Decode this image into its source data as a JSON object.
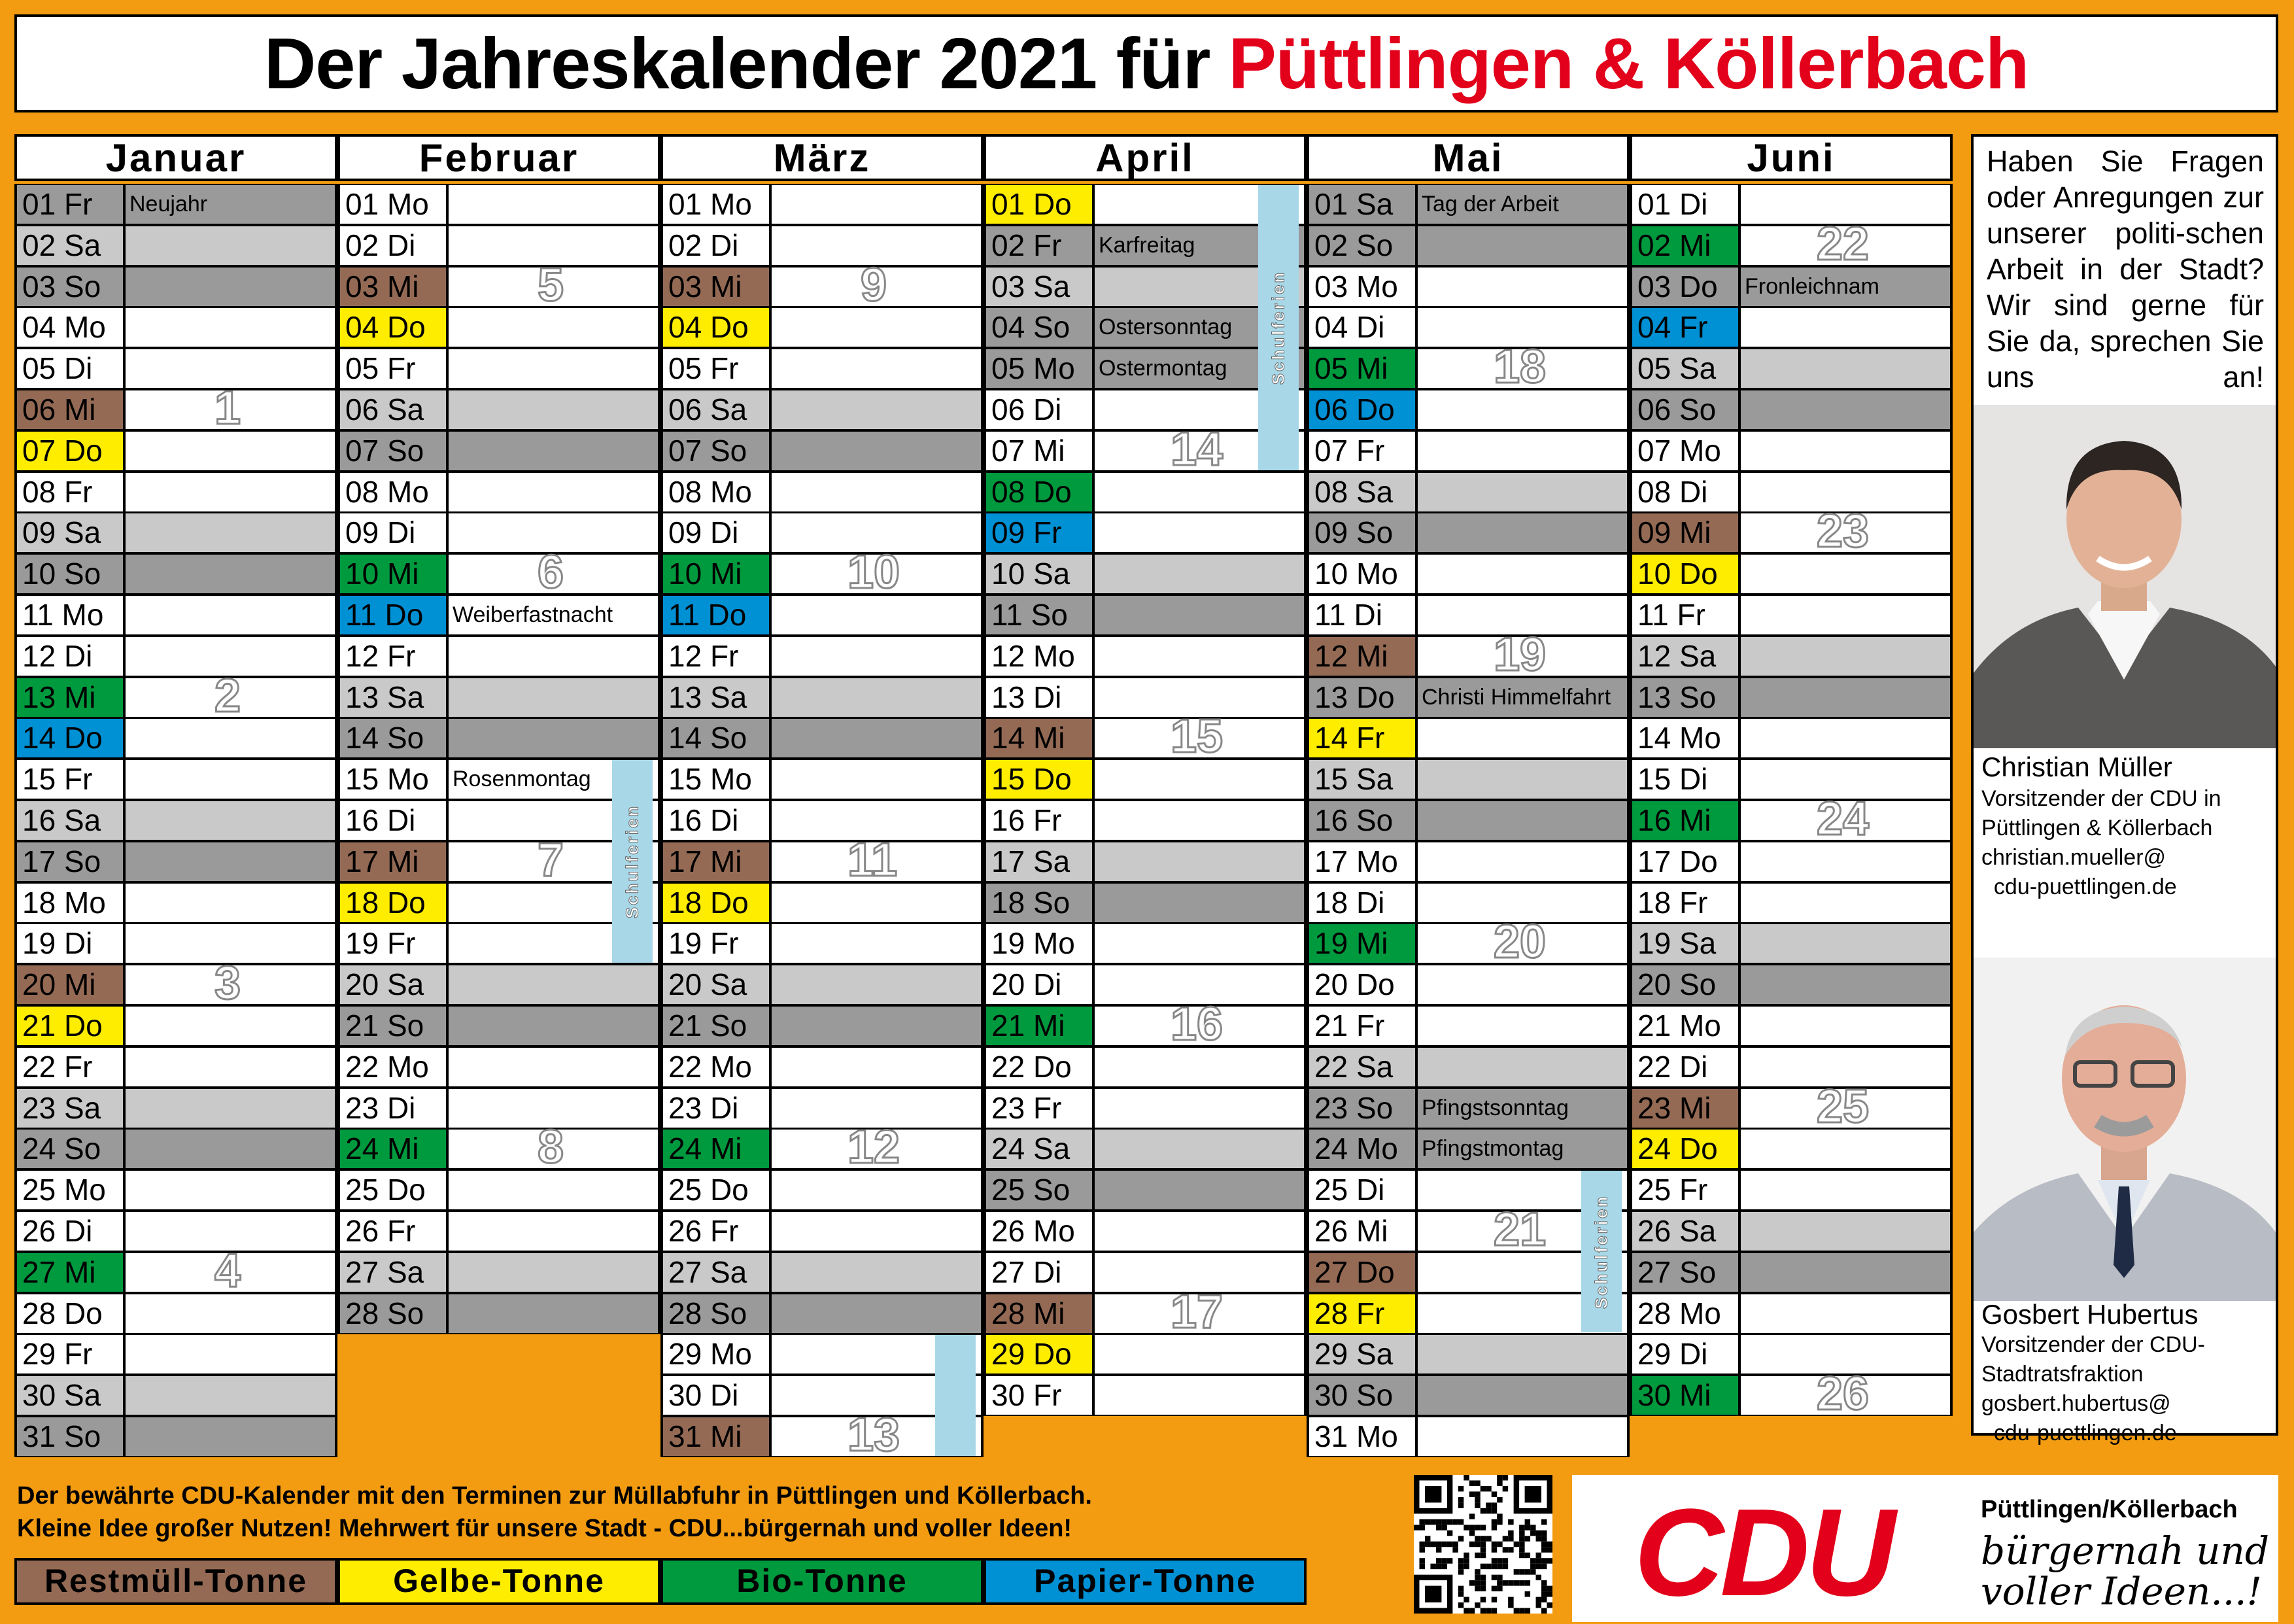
{
  "title": {
    "main": "Der Jahreskalender 2021 für",
    "accent": "Püttlingen & Köllerbach"
  },
  "colors": {
    "restmuell": "#946A55",
    "gelbe": "#FFED00",
    "bio": "#009A3E",
    "papier": "#0090D4",
    "saturday": "#C9C9C9",
    "sunday": "#9A9A9A",
    "holiday": "#9A9A9A",
    "ferien": "#A8D8E8",
    "accent_red": "#E2001A"
  },
  "months": [
    {
      "name": "Januar",
      "start": 5,
      "restmuell": [
        6,
        20
      ],
      "gelbe": [
        7,
        21
      ],
      "bio": [
        13,
        27
      ],
      "papier": [
        14
      ],
      "holidays": [
        {
          "day": 1,
          "label": "Neujahr"
        }
      ],
      "weeks": [
        {
          "n": "1",
          "day": 6
        },
        {
          "n": "2",
          "day": 13
        },
        {
          "n": "3",
          "day": 20
        },
        {
          "n": "4",
          "day": 27
        }
      ],
      "ferien": []
    },
    {
      "name": "Februar",
      "start": 1,
      "restmuell": [
        3,
        17
      ],
      "gelbe": [
        4,
        18
      ],
      "bio": [
        10,
        24
      ],
      "papier": [
        11
      ],
      "holidays": [
        {
          "day": 11,
          "label": "Weiberfastnacht",
          "plain": true
        },
        {
          "day": 15,
          "label": "Rosenmontag",
          "plain": true
        }
      ],
      "weeks": [
        {
          "n": "5",
          "day": 3
        },
        {
          "n": "6",
          "day": 10
        },
        {
          "n": "7",
          "day": 17
        },
        {
          "n": "8",
          "day": 24
        }
      ],
      "ferien": [
        {
          "from": 15,
          "to": 19,
          "label": "Schulferien"
        }
      ]
    },
    {
      "name": "März",
      "start": 1,
      "restmuell": [
        3,
        17,
        31
      ],
      "gelbe": [
        4,
        18
      ],
      "bio": [
        10,
        24
      ],
      "papier": [
        11
      ],
      "holidays": [],
      "weeks": [
        {
          "n": "9",
          "day": 3
        },
        {
          "n": "10",
          "day": 10
        },
        {
          "n": "11",
          "day": 17
        },
        {
          "n": "12",
          "day": 24
        },
        {
          "n": "13",
          "day": 31
        }
      ],
      "ferien": [
        {
          "from": 29,
          "to": 31,
          "label": ""
        }
      ]
    },
    {
      "name": "April",
      "start": 4,
      "restmuell": [
        14,
        28
      ],
      "gelbe": [
        1,
        15,
        29
      ],
      "bio": [
        8,
        21
      ],
      "papier": [
        9
      ],
      "holidays": [
        {
          "day": 2,
          "label": "Karfreitag"
        },
        {
          "day": 4,
          "label": "Ostersonntag"
        },
        {
          "day": 5,
          "label": "Ostermontag"
        }
      ],
      "weeks": [
        {
          "n": "14",
          "day": 7
        },
        {
          "n": "15",
          "day": 14
        },
        {
          "n": "16",
          "day": 21
        },
        {
          "n": "17",
          "day": 28
        }
      ],
      "ferien": [
        {
          "from": 1,
          "to": 7,
          "label": "Schulferien"
        }
      ]
    },
    {
      "name": "Mai",
      "start": 6,
      "restmuell": [
        12,
        27
      ],
      "gelbe": [
        14,
        28
      ],
      "bio": [
        5,
        19
      ],
      "papier": [
        6
      ],
      "holidays": [
        {
          "day": 1,
          "label": "Tag der Arbeit"
        },
        {
          "day": 13,
          "label": "Christi Himmelfahrt"
        },
        {
          "day": 23,
          "label": "Pfingstsonntag"
        },
        {
          "day": 24,
          "label": "Pfingstmontag"
        }
      ],
      "weeks": [
        {
          "n": "18",
          "day": 5
        },
        {
          "n": "19",
          "day": 12
        },
        {
          "n": "20",
          "day": 19
        },
        {
          "n": "21",
          "day": 26
        }
      ],
      "ferien": [
        {
          "from": 25,
          "to": 28,
          "label": "Schulferien"
        }
      ]
    },
    {
      "name": "Juni",
      "start": 2,
      "restmuell": [
        9,
        23
      ],
      "gelbe": [
        10,
        24
      ],
      "bio": [
        2,
        16,
        30
      ],
      "papier": [
        4
      ],
      "holidays": [
        {
          "day": 3,
          "label": "Fronleichnam"
        }
      ],
      "weeks": [
        {
          "n": "22",
          "day": 2
        },
        {
          "n": "23",
          "day": 9
        },
        {
          "n": "24",
          "day": 16
        },
        {
          "n": "25",
          "day": 23
        },
        {
          "n": "26",
          "day": 30
        }
      ],
      "ferien": []
    }
  ],
  "weekday_abbr": [
    "So",
    "Mo",
    "Di",
    "Mi",
    "Do",
    "Fr",
    "Sa"
  ],
  "month_lengths": [
    31,
    28,
    31,
    30,
    31,
    30
  ],
  "sidebar": {
    "question": "Haben Sie Fragen oder Anregungen zur unserer politi-schen Arbeit in der Stadt? Wir sind gerne für Sie da, sprechen Sie uns an!",
    "person1": {
      "name": "Christian Müller",
      "desc": "Vorsitzender der CDU in Püttlingen & Köllerbach",
      "email1": "christian.mueller@",
      "email2": "cdu-puettlingen.de"
    },
    "person2": {
      "name": "Gosbert Hubertus",
      "desc": "Vorsitzender der CDU-Stadtratsfraktion",
      "email1": "gosbert.hubertus@",
      "email2": "cdu-puettlingen.de"
    }
  },
  "bottom": {
    "line1": "Der bewährte CDU-Kalender mit den Terminen zur Müllabfuhr in Püttlingen und Köllerbach.",
    "line2": "Kleine Idee großer Nutzen! Mehrwert für unsere Stadt - CDU...bürgernah und voller Ideen!"
  },
  "legend": [
    "Restmüll-Tonne",
    "Gelbe-Tonne",
    "Bio-Tonne",
    "Papier-Tonne"
  ],
  "logo": {
    "text": "CDU",
    "location": "Püttlingen/Köllerbach",
    "slogan1": "bürgernah und",
    "slogan2": "voller Ideen...!"
  }
}
